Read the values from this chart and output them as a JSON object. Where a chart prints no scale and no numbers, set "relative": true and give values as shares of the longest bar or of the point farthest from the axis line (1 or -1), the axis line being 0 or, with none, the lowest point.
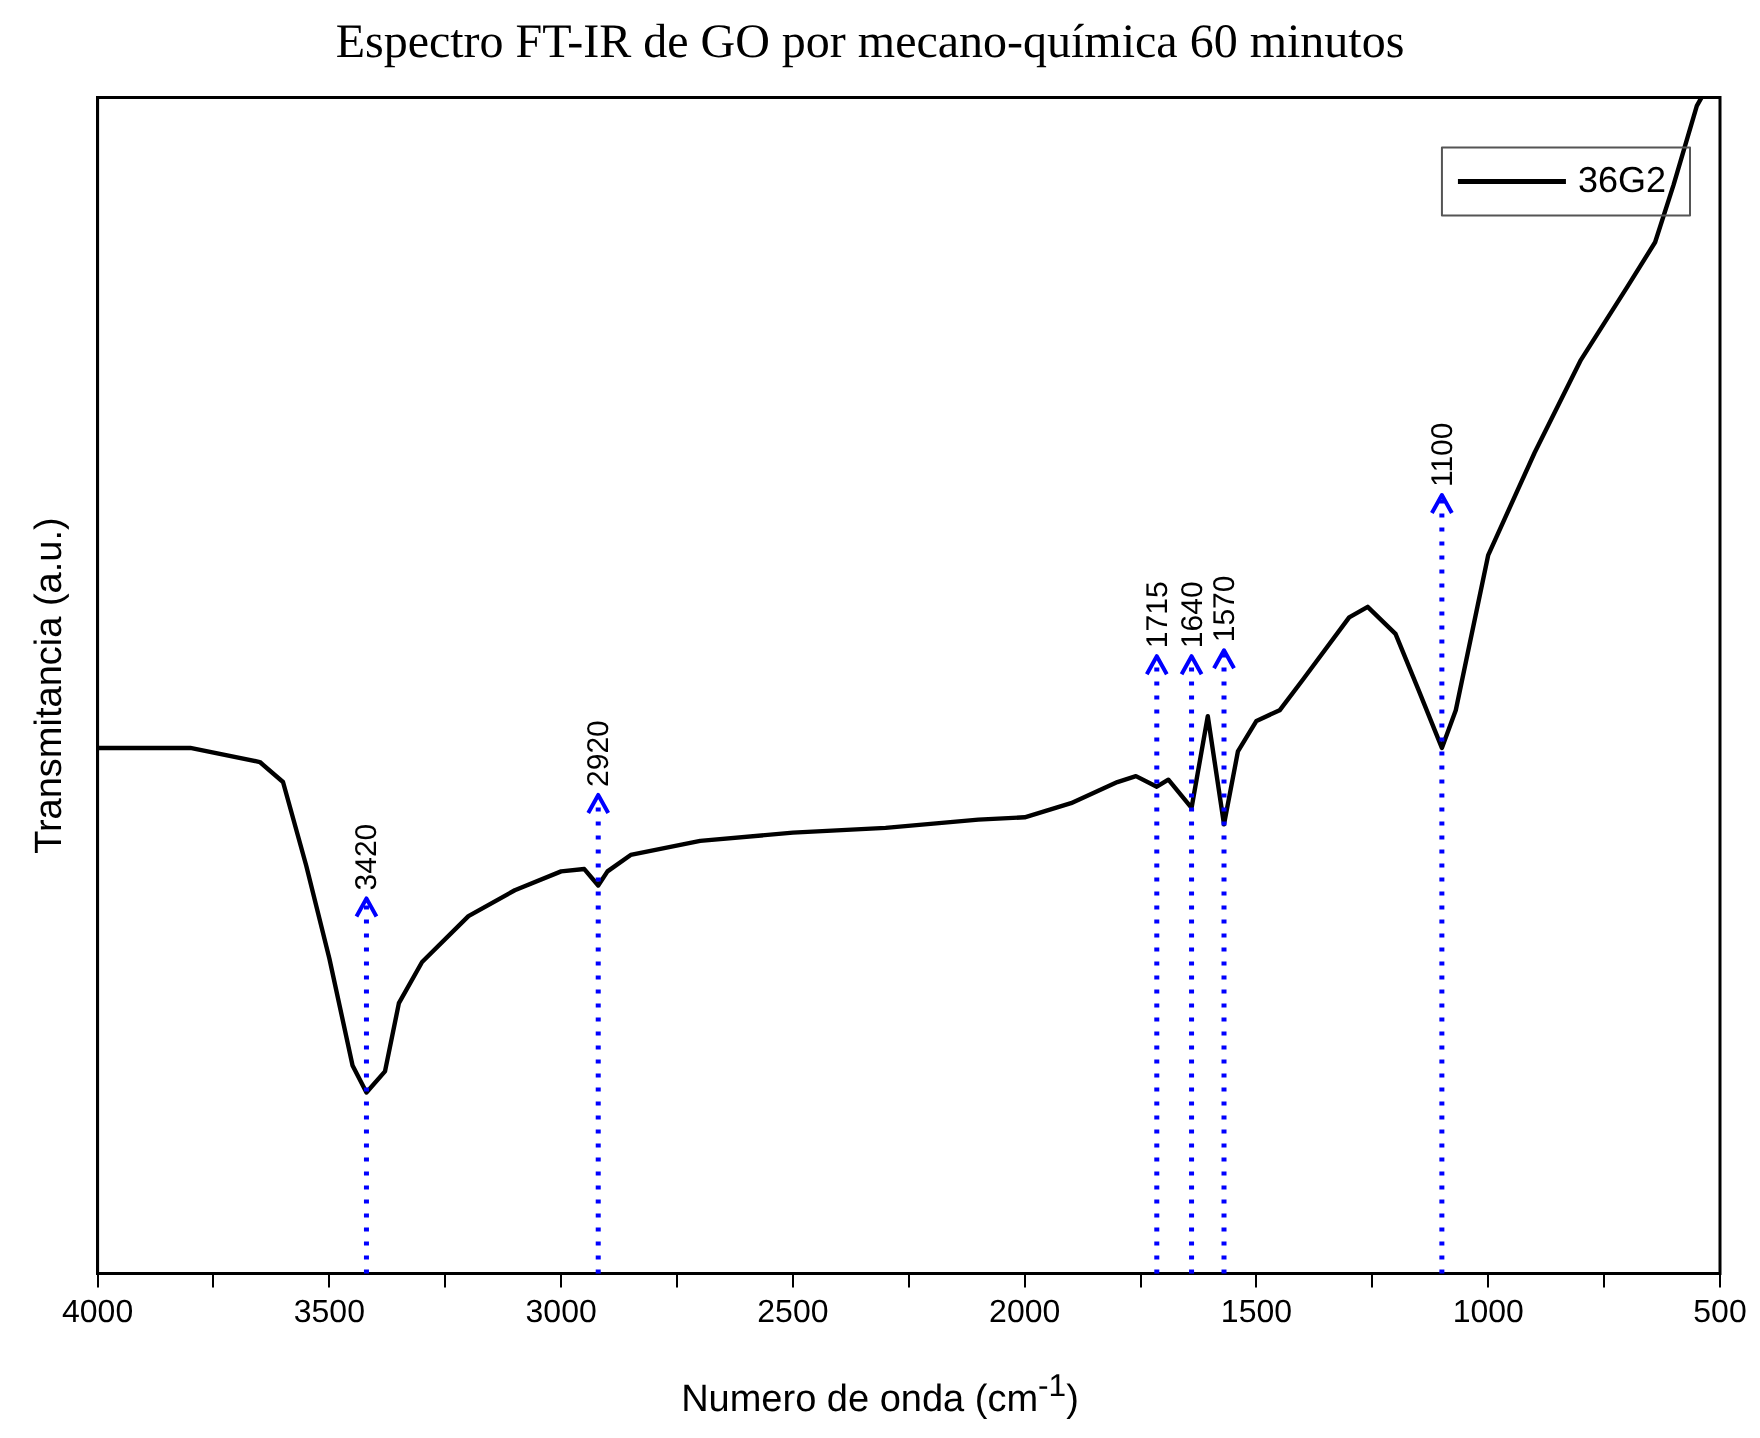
{
  "chart_data": {
    "type": "line",
    "title": "Espectro FT-IR de GO por mecano-química 60 minutos",
    "xlabel": "Numero de onda (cm$^{-1}$)",
    "ylabel": "Transmitancia (a.u.)",
    "relative": true,
    "x": [
      4000,
      3800,
      3650,
      3600,
      3550,
      3500,
      3450,
      3420,
      3380,
      3350,
      3300,
      3200,
      3100,
      3000,
      2950,
      2920,
      2900,
      2850,
      2700,
      2500,
      2300,
      2100,
      2000,
      1900,
      1800,
      1760,
      1715,
      1690,
      1640,
      1605,
      1570,
      1540,
      1500,
      1450,
      1400,
      1300,
      1260,
      1200,
      1150,
      1100,
      1070,
      1000,
      900,
      800,
      700,
      640,
      600,
      550,
      540
    ],
    "series": [
      {
        "name": "36G2",
        "color": "#000000",
        "values": [
          0.447,
          0.447,
          0.435,
          0.418,
          0.347,
          0.268,
          0.177,
          0.154,
          0.172,
          0.23,
          0.265,
          0.304,
          0.326,
          0.342,
          0.344,
          0.33,
          0.342,
          0.356,
          0.368,
          0.375,
          0.379,
          0.386,
          0.388,
          0.4,
          0.418,
          0.423,
          0.414,
          0.42,
          0.396,
          0.474,
          0.382,
          0.444,
          0.47,
          0.479,
          0.505,
          0.558,
          0.567,
          0.544,
          0.496,
          0.447,
          0.479,
          0.611,
          0.698,
          0.777,
          0.839,
          0.877,
          0.926,
          0.993,
          1.0
        ]
      }
    ],
    "xlim": [
      4000,
      500
    ],
    "xticks": [
      4000,
      {
        "value": 3750,
        "label": null
      },
      3500,
      {
        "value": 3250,
        "label": null
      },
      3000,
      {
        "value": 2750,
        "label": null
      },
      2500,
      {
        "value": 2250,
        "label": null
      },
      2000,
      {
        "value": 1750,
        "label": null
      },
      1500,
      {
        "value": 1250,
        "label": null
      },
      1000,
      {
        "value": 750,
        "label": null
      },
      500
    ],
    "ref_lines": [
      {
        "axis": "x",
        "value": 3420,
        "label": "3420",
        "color": "#0000ff",
        "line_style": "dotted"
      },
      {
        "axis": "x",
        "value": 2920,
        "label": "2920",
        "color": "#0000ff",
        "line_style": "dotted"
      },
      {
        "axis": "x",
        "value": 1715,
        "label": "1715",
        "color": "#0000ff",
        "line_style": "dotted"
      },
      {
        "axis": "x",
        "value": 1640,
        "label": "1640",
        "color": "#0000ff",
        "line_style": "dotted"
      },
      {
        "axis": "x",
        "value": 1570,
        "label": "1570",
        "color": "#0000ff",
        "line_style": "dotted"
      },
      {
        "axis": "x",
        "value": 1100,
        "label": "1100",
        "color": "#0000ff",
        "line_style": "dotted"
      }
    ],
    "legend": "top right",
    "grid": false,
    "marker": "none",
    "line_style": "solid"
  }
}
